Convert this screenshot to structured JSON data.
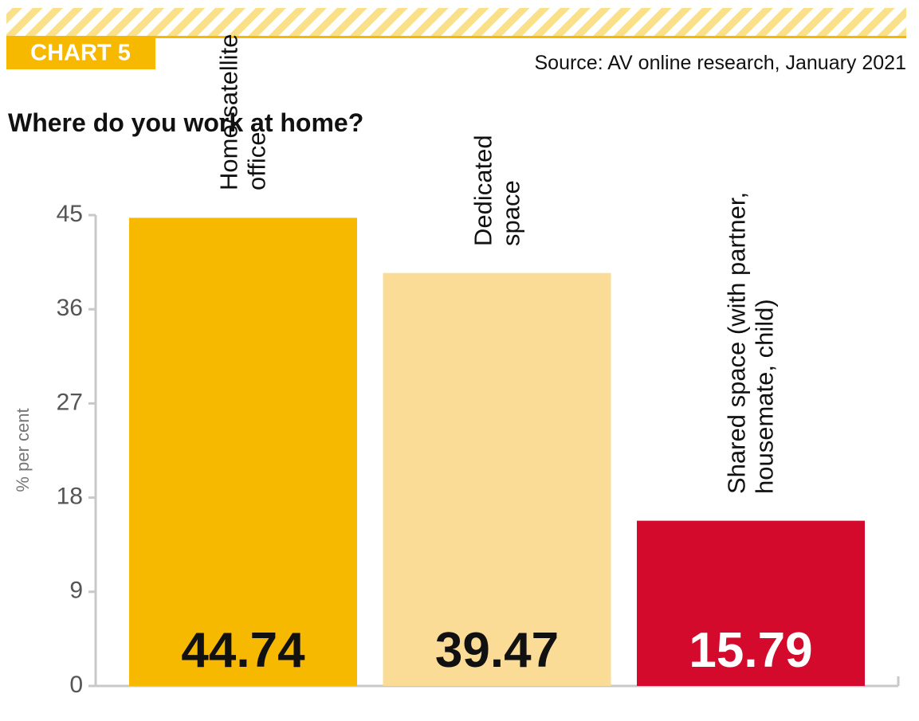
{
  "chart_data": {
    "type": "bar",
    "badge": "CHART 5",
    "source": "Source: AV online research, January 2021",
    "title": "Where do you work at home?",
    "y_label": "% per cent",
    "categories": [
      "Home/satellite office",
      "Dedicated space",
      "Shared space (with partner, housemate, child)"
    ],
    "values": [
      44.74,
      39.47,
      15.79
    ],
    "colors": [
      "#f7b800",
      "#fbdc96",
      "#d40a2d"
    ],
    "ylim": [
      0,
      45
    ],
    "yticks": [
      0,
      9,
      18,
      27,
      36,
      45
    ]
  }
}
